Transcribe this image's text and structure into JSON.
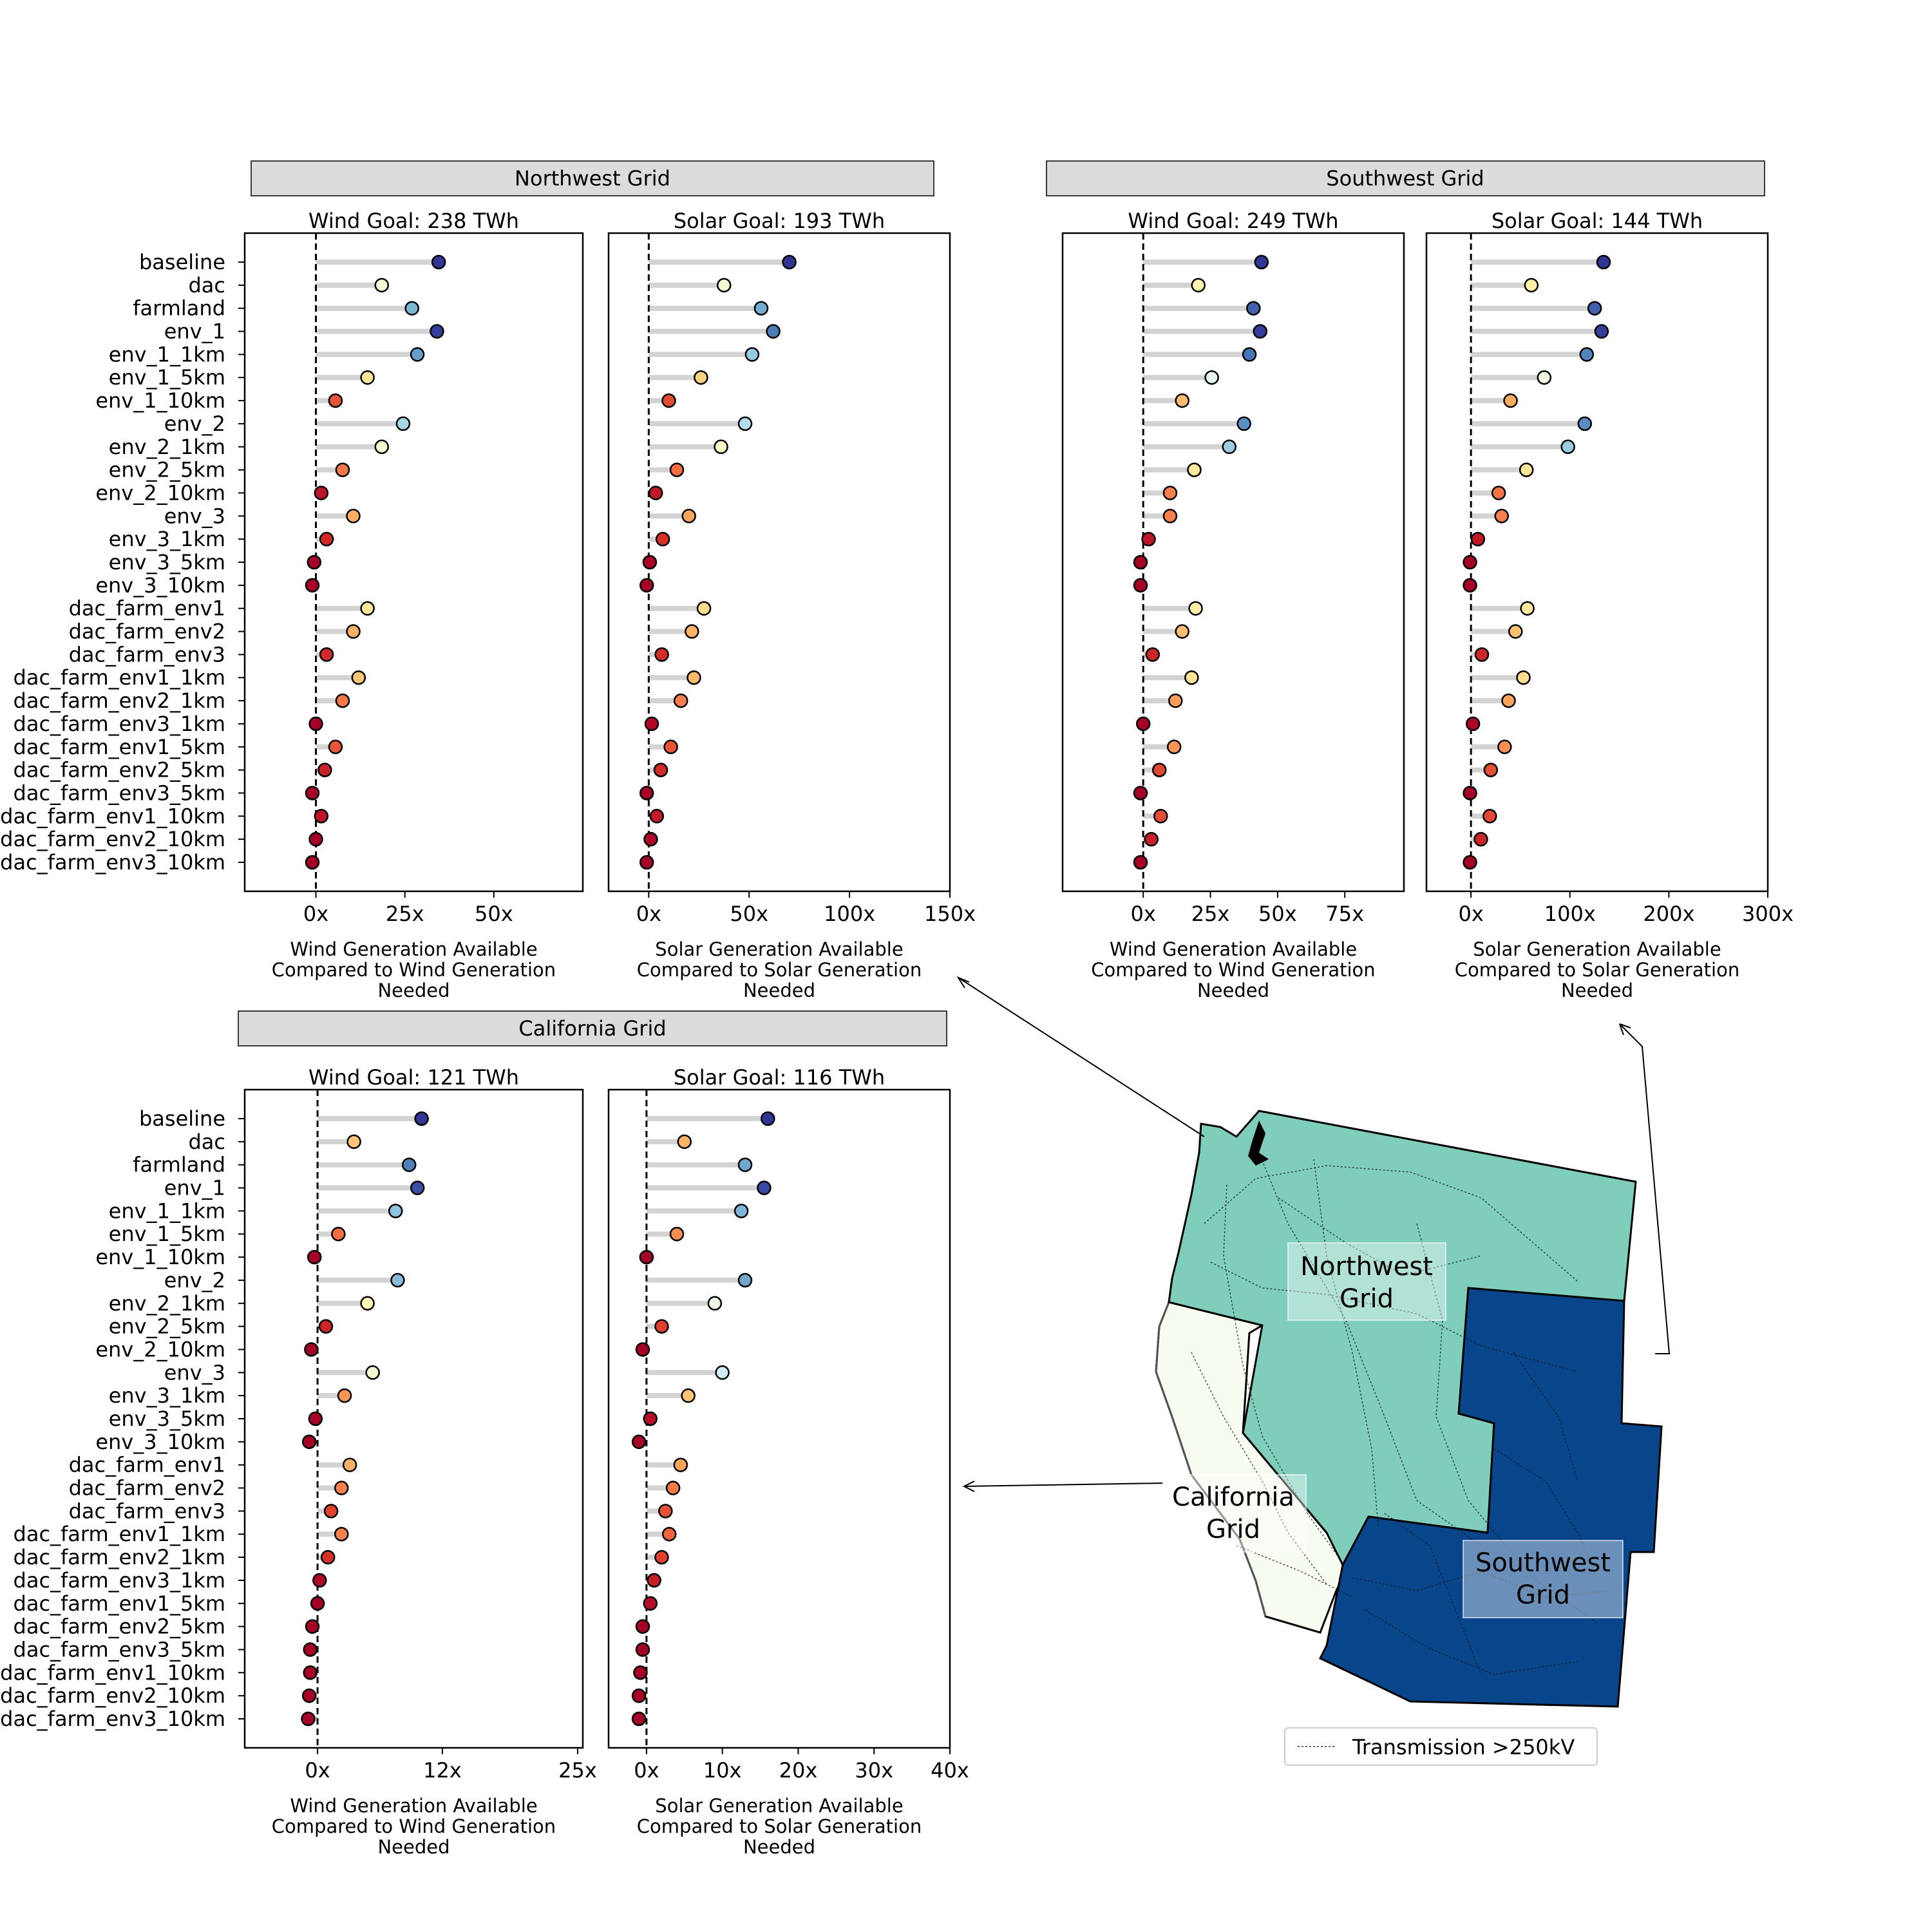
{
  "scenarios": [
    "baseline",
    "dac",
    "farmland",
    "env_1",
    "env_1_1km",
    "env_1_5km",
    "env_1_10km",
    "env_2",
    "env_2_1km",
    "env_2_5km",
    "env_2_10km",
    "env_3",
    "env_3_1km",
    "env_3_5km",
    "env_3_10km",
    "dac_farm_env1",
    "dac_farm_env2",
    "dac_farm_env3",
    "dac_farm_env1_1km",
    "dac_farm_env2_1km",
    "dac_farm_env3_1km",
    "dac_farm_env1_5km",
    "dac_farm_env2_5km",
    "dac_farm_env3_5km",
    "dac_farm_env1_10km",
    "dac_farm_env2_10km",
    "dac_farm_env3_10km"
  ],
  "x_axis_label": "Wind Generation Available Compared to Wind Generation Needed",
  "solar_axis_label": "Solar Generation Available Compared to Solar Generation Needed",
  "colors": {
    "high": "#313695",
    "mid": "#ffffbf",
    "low": "#a50026",
    "stem": "#d3d3d3",
    "northwest": "#7fcdbb",
    "southwest": "#08458a",
    "california": "#f7fcf0"
  },
  "chart_data": [
    {
      "type": "lollipop",
      "grid": "Northwest Grid",
      "title": "Wind Goal: 238 TWh",
      "xlabel": "Wind Generation Available Compared to Wind Generation Needed",
      "xlim": [
        -20,
        75
      ],
      "xticks": [
        0,
        25,
        50
      ],
      "tick_labels": [
        "0x",
        "25x",
        "50x"
      ],
      "values": [
        34.5,
        18.5,
        27,
        34,
        28.5,
        14.5,
        5.5,
        24.5,
        18.5,
        7.5,
        1.5,
        10.5,
        3,
        -0.5,
        -1,
        14.5,
        10.5,
        3,
        12,
        7.5,
        0,
        5.5,
        2.5,
        -1,
        1.5,
        0,
        -1
      ]
    },
    {
      "type": "lollipop",
      "grid": "Northwest Grid",
      "title": "Solar Goal: 193 TWh",
      "xlabel": "Solar Generation Available Compared to Solar Generation Needed",
      "xlim": [
        -20,
        150
      ],
      "xticks": [
        0,
        50,
        100,
        150
      ],
      "tick_labels": [
        "0x",
        "50x",
        "100x",
        "150x"
      ],
      "values": [
        70,
        37.5,
        56,
        62,
        51.5,
        26,
        10,
        48,
        36,
        14,
        3.5,
        20,
        7,
        0.5,
        -1,
        27.5,
        21.5,
        6.5,
        22.5,
        16,
        1.5,
        11,
        6,
        -1,
        4,
        1,
        -1
      ]
    },
    {
      "type": "lollipop",
      "grid": "Southwest Grid",
      "title": "Wind Goal: 249 TWh",
      "xlabel": "Wind Generation Available Compared to Wind Generation Needed",
      "xlim": [
        -30,
        97
      ],
      "xticks": [
        0,
        25,
        50,
        75
      ],
      "tick_labels": [
        "0x",
        "25x",
        "50x",
        "75x"
      ],
      "values": [
        44,
        20.5,
        41,
        43.5,
        39.5,
        25.5,
        14.5,
        37.5,
        32,
        19,
        10,
        10,
        2,
        -1,
        -1,
        19.5,
        14.5,
        3.5,
        18,
        12,
        0,
        11.5,
        6,
        -1,
        6.5,
        3,
        -1
      ]
    },
    {
      "type": "lollipop",
      "grid": "Southwest Grid",
      "title": "Solar Goal: 144 TWh",
      "xlabel": "Solar Generation Available Compared to Solar Generation Needed",
      "xlim": [
        -45,
        300
      ],
      "xticks": [
        0,
        100,
        200,
        300
      ],
      "tick_labels": [
        "0x",
        "100x",
        "200x",
        "300x"
      ],
      "values": [
        134,
        61,
        125,
        132,
        117,
        74,
        40,
        115,
        98,
        56,
        28,
        31,
        7,
        -1,
        -1,
        57,
        45,
        11,
        53,
        38,
        2,
        34,
        20,
        -1,
        19,
        10,
        -1
      ]
    },
    {
      "type": "lollipop",
      "grid": "California Grid",
      "title": "Wind Goal: 121 TWh",
      "xlabel": "Wind Generation Available Compared to Wind Generation Needed",
      "xlim": [
        -7,
        25.5
      ],
      "xticks": [
        0,
        12,
        25
      ],
      "tick_labels": [
        "0x",
        "12x",
        "25x"
      ],
      "values": [
        10,
        3.5,
        8.8,
        9.6,
        7.5,
        2,
        -0.3,
        7.7,
        4.8,
        0.8,
        -0.6,
        5.3,
        2.6,
        -0.2,
        -0.8,
        3.1,
        2.3,
        1.3,
        2.3,
        1,
        0.2,
        0,
        -0.5,
        -0.7,
        -0.7,
        -0.8,
        -0.9
      ]
    },
    {
      "type": "lollipop",
      "grid": "California Grid",
      "title": "Solar Goal: 116 TWh",
      "xlabel": "Solar Generation Available Compared to Solar Generation Needed",
      "xlim": [
        -5,
        40
      ],
      "xticks": [
        0,
        10,
        20,
        30,
        40
      ],
      "tick_labels": [
        "0x",
        "10x",
        "20x",
        "30x",
        "40x"
      ],
      "values": [
        16,
        5,
        13,
        15.5,
        12.5,
        4,
        0,
        13,
        9,
        2,
        -0.5,
        10,
        5.5,
        0.5,
        -1,
        4.5,
        3.5,
        2.5,
        3,
        2,
        1,
        0.5,
        -0.5,
        -0.5,
        -0.8,
        -1,
        -1
      ]
    }
  ],
  "panels": {
    "northwest_title": "Northwest Grid",
    "southwest_title": "Southwest Grid",
    "california_title": "California Grid"
  },
  "map": {
    "northwest_label_line1": "Northwest",
    "northwest_label_line2": "Grid",
    "california_label_line1": "California",
    "california_label_line2": "Grid",
    "southwest_label_line1": "Southwest",
    "southwest_label_line2": "Grid",
    "legend_label": "Transmission >250kV"
  }
}
